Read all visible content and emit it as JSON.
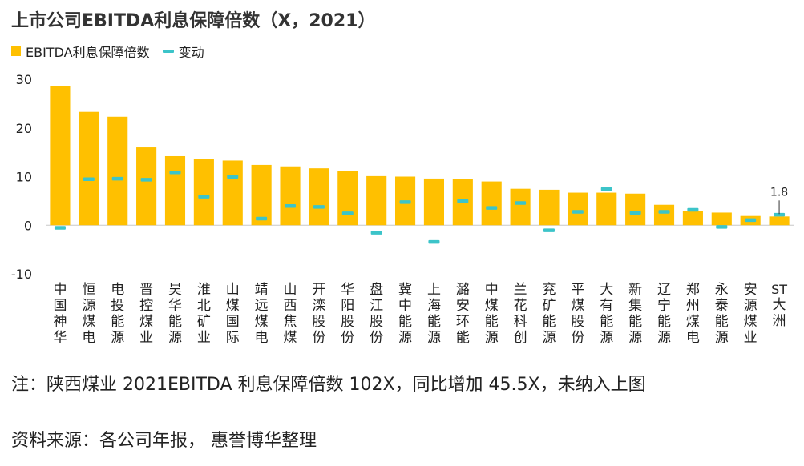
{
  "title": "上市公司EBITDA利息保障倍数（X，2021）",
  "legend": {
    "bar_label": "EBITDA利息保障倍数",
    "dash_label": "变动"
  },
  "colors": {
    "bar": "#FFC000",
    "change": "#3CC4C9"
  },
  "chart_data": {
    "type": "bar",
    "categories": [
      "中国神华",
      "恒源煤电",
      "电投能源",
      "晋控煤业",
      "昊华能源",
      "淮北矿业",
      "山煤国际",
      "靖远煤电",
      "山西焦煤",
      "开滦股份",
      "华阳股份",
      "盘江股份",
      "冀中能源",
      "上海能源",
      "潞安环能",
      "中煤能源",
      "兰花科创",
      "兖矿能源",
      "平煤股份",
      "大有能源",
      "新集能源",
      "辽宁能源",
      "郑州煤电",
      "永泰能源",
      "安源煤业",
      "ST大洲"
    ],
    "series": [
      {
        "name": "EBITDA利息保障倍数",
        "type": "bar",
        "values": [
          28.6,
          23.3,
          22.3,
          16.0,
          14.2,
          13.6,
          13.3,
          12.4,
          12.1,
          11.7,
          11.1,
          10.1,
          10.0,
          9.6,
          9.5,
          9.0,
          7.5,
          7.3,
          6.7,
          6.7,
          6.5,
          4.2,
          3.0,
          2.6,
          1.9,
          1.8
        ]
      },
      {
        "name": "变动",
        "type": "marker",
        "values": [
          -0.5,
          9.5,
          9.6,
          9.4,
          10.9,
          5.9,
          10.0,
          1.4,
          4.0,
          3.8,
          2.5,
          -1.5,
          4.8,
          -3.4,
          5.0,
          3.6,
          4.6,
          -1.0,
          2.8,
          7.5,
          2.6,
          2.8,
          3.2,
          -0.3,
          1.1,
          2.2
        ]
      }
    ],
    "ylim": [
      -10,
      30
    ],
    "yticks": [
      -10,
      0,
      10,
      20,
      30
    ],
    "data_labels": [
      {
        "category": "ST大洲",
        "text": "1.8"
      }
    ],
    "grid": false,
    "legend_position": "top-left"
  },
  "notes": {
    "line1": "注：陕西煤业 2021EBITDA 利息保障倍数 102X，同比增加 45.5X，未纳入上图",
    "line2": "资料来源：各公司年报， 惠誉博华整理"
  }
}
